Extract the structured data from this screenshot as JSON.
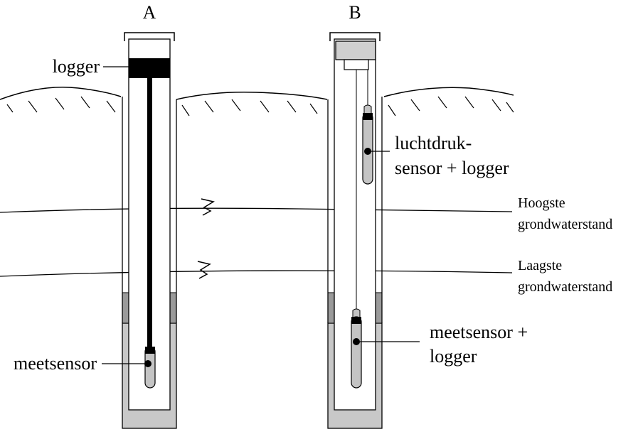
{
  "diagram": {
    "well_a_title": "A",
    "well_b_title": "B",
    "label_logger": "logger",
    "label_meetsensor": "meetsensor",
    "label_luchtdruk_line1": "luchtdruk-",
    "label_luchtdruk_line2": "sensor + logger",
    "label_meetsensor_logger_line1": "meetsensor +",
    "label_meetsensor_logger_line2": "logger",
    "label_hoogste_line1": "Hoogste",
    "label_hoogste_line2": "grondwaterstand",
    "label_laagste_line1": "Laagste",
    "label_laagste_line2": "grondwaterstand"
  },
  "colors": {
    "ink": "#000000",
    "filter_gravel": "#c8c8c8",
    "seal": "#9a9a9a",
    "sensor": "#c4c4c4",
    "cap_b": "#cfcfcf"
  }
}
